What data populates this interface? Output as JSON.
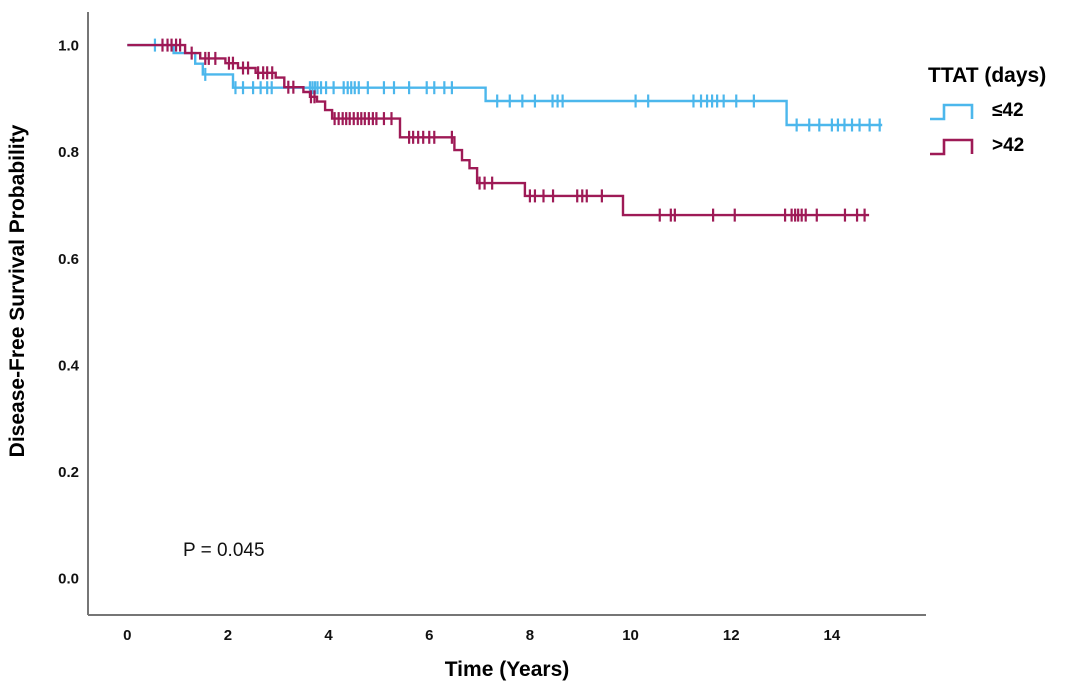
{
  "figure": {
    "background": "#ffffff",
    "axis_color": "#767676",
    "text_color": "#000000"
  },
  "chart_data": {
    "type": "line",
    "subtype": "kaplan-meier-step",
    "title": "",
    "xlabel": "Time (Years)",
    "ylabel": "Disease-Free Survival Probability",
    "annotation": "P = 0.045",
    "grid": false,
    "xlim": [
      -0.78,
      15.87
    ],
    "ylim": [
      -0.069,
      1.062
    ],
    "xticks": [
      0,
      2,
      4,
      6,
      8,
      10,
      12,
      14
    ],
    "yticks": [
      0.0,
      0.2,
      0.4,
      0.6,
      0.8,
      1.0
    ],
    "legend": {
      "title": "TTAT (days)",
      "position": "right",
      "items": [
        {
          "label": "≤42",
          "color": "#4CB7EC"
        },
        {
          "label": ">42",
          "color": "#9E1A56"
        }
      ]
    },
    "series": [
      {
        "name": "≤42",
        "color": "#4CB7EC",
        "start": 0,
        "end": 15.0,
        "steps": [
          [
            0.92,
            0.985
          ],
          [
            1.35,
            0.965
          ],
          [
            1.5,
            0.945
          ],
          [
            2.1,
            0.92
          ],
          [
            7.12,
            0.895
          ],
          [
            13.1,
            0.85
          ]
        ],
        "censors": [
          0.55,
          1.55,
          2.15,
          2.3,
          2.5,
          2.65,
          2.78,
          2.87,
          3.63,
          3.68,
          3.73,
          3.78,
          3.85,
          3.95,
          4.1,
          4.3,
          4.38,
          4.45,
          4.52,
          4.6,
          4.78,
          5.1,
          5.3,
          5.6,
          5.95,
          6.1,
          6.3,
          6.45,
          7.35,
          7.6,
          7.85,
          8.1,
          8.45,
          8.55,
          8.65,
          10.1,
          10.35,
          11.25,
          11.4,
          11.52,
          11.62,
          11.72,
          11.85,
          12.1,
          12.45,
          13.3,
          13.55,
          13.75,
          14.0,
          14.12,
          14.25,
          14.4,
          14.55,
          14.75,
          14.95
        ]
      },
      {
        "name": ">42",
        "color": "#9E1A56",
        "start": 0,
        "end": 14.74,
        "steps": [
          [
            1.15,
            0.985
          ],
          [
            1.45,
            0.975
          ],
          [
            1.95,
            0.966
          ],
          [
            2.2,
            0.957
          ],
          [
            2.55,
            0.948
          ],
          [
            2.95,
            0.939
          ],
          [
            3.12,
            0.921
          ],
          [
            3.5,
            0.912
          ],
          [
            3.63,
            0.903
          ],
          [
            3.77,
            0.894
          ],
          [
            3.93,
            0.878
          ],
          [
            4.07,
            0.862
          ],
          [
            5.42,
            0.827
          ],
          [
            6.5,
            0.803
          ],
          [
            6.65,
            0.784
          ],
          [
            6.8,
            0.769
          ],
          [
            6.95,
            0.741
          ],
          [
            7.9,
            0.717
          ],
          [
            9.85,
            0.681
          ]
        ],
        "censors": [
          0.7,
          0.8,
          0.88,
          0.97,
          1.05,
          1.28,
          1.55,
          1.62,
          1.75,
          2.02,
          2.1,
          2.3,
          2.4,
          2.6,
          2.7,
          2.78,
          2.88,
          3.2,
          3.3,
          3.65,
          3.72,
          4.12,
          4.2,
          4.28,
          4.35,
          4.42,
          4.5,
          4.58,
          4.65,
          4.72,
          4.8,
          4.88,
          4.95,
          5.1,
          5.25,
          5.6,
          5.68,
          5.78,
          5.88,
          6.0,
          6.1,
          6.45,
          7.0,
          7.1,
          7.25,
          8.0,
          8.1,
          8.27,
          8.46,
          8.94,
          9.04,
          9.13,
          9.43,
          10.58,
          10.8,
          10.88,
          11.64,
          12.07,
          13.07,
          13.2,
          13.27,
          13.33,
          13.4,
          13.48,
          13.7,
          14.26,
          14.5,
          14.65
        ]
      }
    ]
  }
}
